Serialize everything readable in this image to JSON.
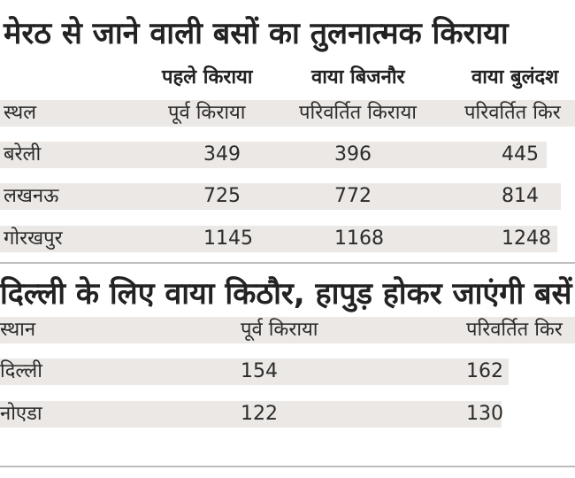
{
  "table1": {
    "title": "मेरठ से जाने वाली बसों का तुलनात्मक किराया",
    "group_headers": [
      "पहले किराया",
      "वाया बिजनौर",
      "वाया बुलंदश"
    ],
    "columns": [
      "स्थल",
      "पूर्व किराया",
      "परिवर्तित किराया",
      "परिवर्तित किर"
    ],
    "rows": [
      [
        "बरेली",
        "349",
        "396",
        "445"
      ],
      [
        "लखनऊ",
        "725",
        "772",
        "814"
      ],
      [
        "गोरखपुर",
        "1145",
        "1168",
        "1248"
      ]
    ]
  },
  "table2": {
    "title": "दिल्ली के लिए वाया किठौर, हापुड़ होकर जाएंगी बसें",
    "columns": [
      "स्थान",
      "पूर्व किराया",
      "परिवर्तित किर"
    ],
    "rows": [
      [
        "दिल्ली",
        "154",
        "162"
      ],
      [
        "नोएडा",
        "122",
        "130"
      ]
    ]
  }
}
